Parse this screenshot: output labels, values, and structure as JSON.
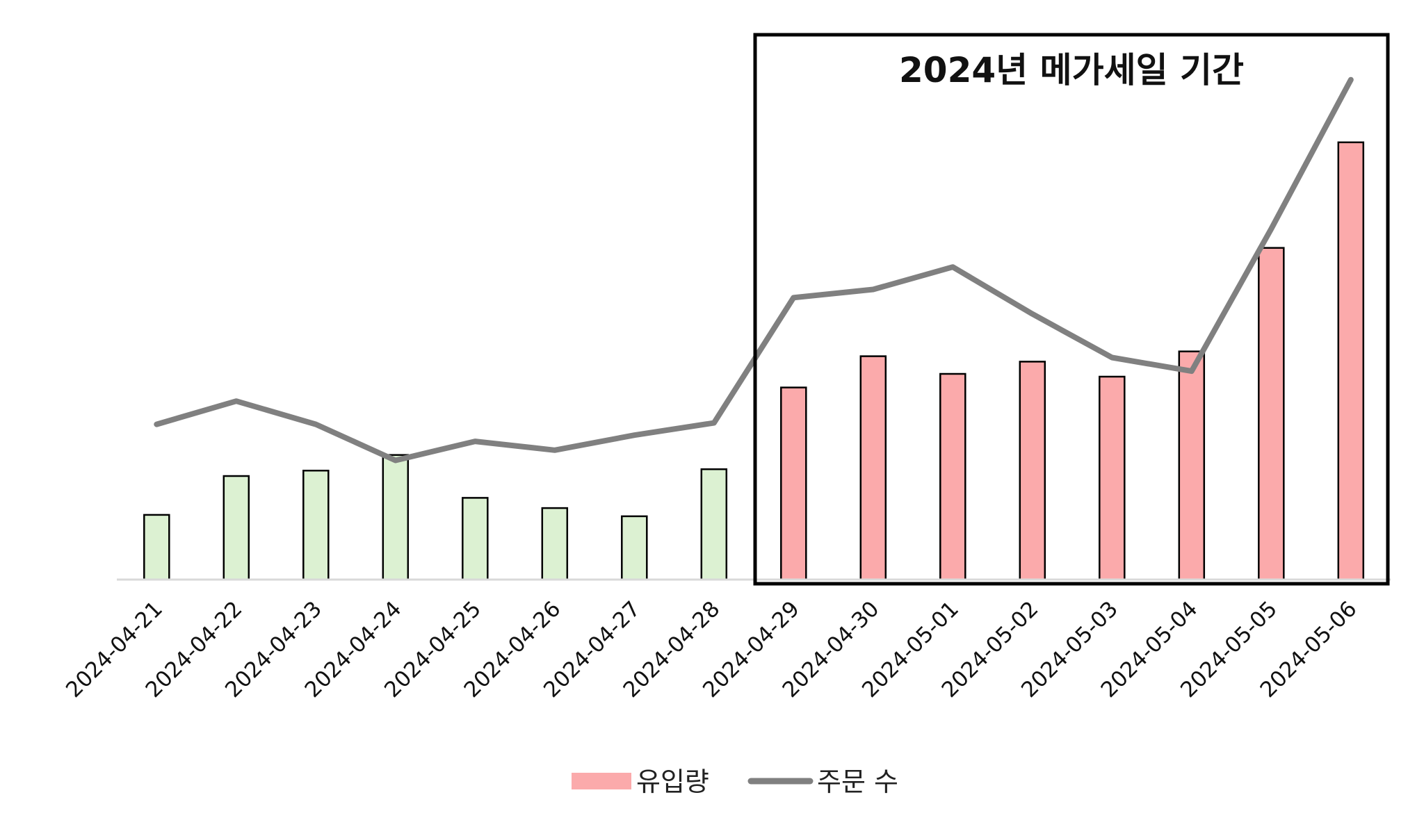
{
  "chart_data": {
    "type": "bar",
    "categories": [
      "2024-04-21",
      "2024-04-22",
      "2024-04-23",
      "2024-04-24",
      "2024-04-25",
      "2024-04-26",
      "2024-04-27",
      "2024-04-28",
      "2024-04-29",
      "2024-04-30",
      "2024-05-01",
      "2024-05-02",
      "2024-05-03",
      "2024-05-04",
      "2024-05-05",
      "2024-05-06"
    ],
    "series": [
      {
        "name": "유입량",
        "type": "bar",
        "values": [
          9.5,
          15.2,
          16.0,
          18.3,
          12.0,
          10.5,
          9.3,
          16.2,
          28.2,
          32.8,
          30.2,
          32.0,
          29.8,
          33.5,
          48.7,
          64.2
        ],
        "colors": [
          "#dcf1d2",
          "#dcf1d2",
          "#dcf1d2",
          "#dcf1d2",
          "#dcf1d2",
          "#dcf1d2",
          "#dcf1d2",
          "#dcf1d2",
          "#fbaaab",
          "#fbaaab",
          "#fbaaab",
          "#fbaaab",
          "#fbaaab",
          "#fbaaab",
          "#fbaaab",
          "#fbaaab"
        ]
      },
      {
        "name": "주문 수",
        "type": "line",
        "values": [
          22.8,
          26.2,
          22.8,
          17.5,
          20.3,
          19.0,
          21.2,
          23.0,
          41.4,
          42.6,
          45.9,
          39.0,
          32.6,
          30.6,
          51.5,
          73.4
        ],
        "color": "#808080"
      }
    ],
    "ylim": [
      0,
      80
    ],
    "annotation": {
      "text": "2024년 메가세일 기간",
      "from": "2024-04-29",
      "to": "2024-05-06"
    },
    "legend": {
      "position": "bottom"
    },
    "grid": false
  }
}
